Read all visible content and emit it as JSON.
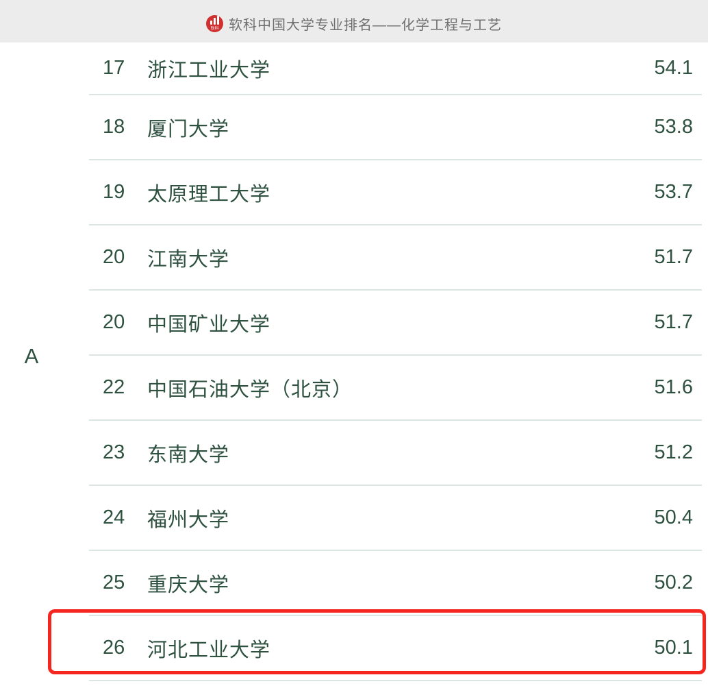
{
  "header": {
    "title": "软科中国大学专业排名——化学工程与工艺",
    "logo_label": "软科"
  },
  "grade": {
    "label": "A"
  },
  "ranking": {
    "rows": [
      {
        "rank": "17",
        "university": "浙江工业大学",
        "score": "54.1",
        "highlighted": false
      },
      {
        "rank": "18",
        "university": "厦门大学",
        "score": "53.8",
        "highlighted": false
      },
      {
        "rank": "19",
        "university": "太原理工大学",
        "score": "53.7",
        "highlighted": false
      },
      {
        "rank": "20",
        "university": "江南大学",
        "score": "51.7",
        "highlighted": false
      },
      {
        "rank": "20",
        "university": "中国矿业大学",
        "score": "51.7",
        "highlighted": false
      },
      {
        "rank": "22",
        "university": "中国石油大学（北京）",
        "score": "51.6",
        "highlighted": false
      },
      {
        "rank": "23",
        "university": "东南大学",
        "score": "51.2",
        "highlighted": false
      },
      {
        "rank": "24",
        "university": "福州大学",
        "score": "50.4",
        "highlighted": false
      },
      {
        "rank": "25",
        "university": "重庆大学",
        "score": "50.2",
        "highlighted": false
      },
      {
        "rank": "26",
        "university": "河北工业大学",
        "score": "50.1",
        "highlighted": true
      }
    ]
  },
  "colors": {
    "text_green": "#2e5140",
    "separator": "#dbe6e0",
    "highlight_red": "#f5261f",
    "header_bg": "#ececec",
    "header_text": "#6e6e6e",
    "logo_red": "#d03030"
  }
}
